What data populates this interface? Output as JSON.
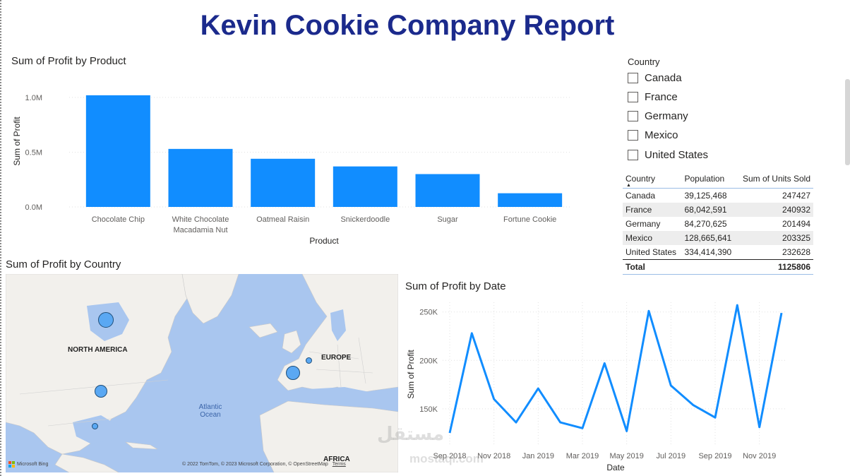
{
  "report_title": "Kevin Cookie Company Report",
  "bar_chart": {
    "title": "Sum of Profit by Product",
    "chart_data": {
      "type": "bar",
      "categories": [
        "Chocolate Chip",
        "White Chocolate Macadamia Nut",
        "Oatmeal Raisin",
        "Snickerdoodle",
        "Sugar",
        "Fortune Cookie"
      ],
      "category_lines": [
        [
          "Chocolate Chip"
        ],
        [
          "White Chocolate",
          "Macadamia Nut"
        ],
        [
          "Oatmeal Raisin"
        ],
        [
          "Snickerdoodle"
        ],
        [
          "Sugar"
        ],
        [
          "Fortune Cookie"
        ]
      ],
      "values": [
        1020000,
        530000,
        440000,
        370000,
        300000,
        125000
      ],
      "xlabel": "Product",
      "ylabel": "Sum of Profit",
      "ylim": [
        0,
        1000000
      ],
      "yticks": [
        0,
        500000,
        1000000
      ],
      "ytick_labels": [
        "0.0M",
        "0.5M",
        "1.0M"
      ],
      "color": "#118dff",
      "grid": true
    }
  },
  "slicer": {
    "label": "Country",
    "items": [
      "Canada",
      "France",
      "Germany",
      "Mexico",
      "United States"
    ]
  },
  "table": {
    "headers": [
      "Country",
      "Population",
      "Sum of Units Sold"
    ],
    "rows": [
      [
        "Canada",
        "39,125,468",
        "247427"
      ],
      [
        "France",
        "68,042,591",
        "240932"
      ],
      [
        "Germany",
        "84,270,625",
        "201494"
      ],
      [
        "Mexico",
        "128,665,641",
        "203325"
      ],
      [
        "United States",
        "334,414,390",
        "232628"
      ]
    ],
    "total_label": "Total",
    "total_value": "1125806"
  },
  "map": {
    "title": "Sum of Profit by Country",
    "labels": {
      "north_america": "NORTH AMERICA",
      "europe": "EUROPE",
      "africa": "AFRICA",
      "ocean_line1": "Atlantic",
      "ocean_line2": "Ocean"
    },
    "bing_logo": "Microsoft Bing",
    "copyright": "© 2022 TomTom, © 2023 Microsoft Corporation, © OpenStreetMap",
    "terms": "Terms",
    "bubble_color": "#5aa8f3"
  },
  "line_chart": {
    "title": "Sum of Profit by Date",
    "chart_data": {
      "type": "line",
      "x": [
        "2018-09",
        "2018-10",
        "2018-11",
        "2018-12",
        "2019-01",
        "2019-02",
        "2019-03",
        "2019-04",
        "2019-05",
        "2019-06",
        "2019-07",
        "2019-08",
        "2019-09",
        "2019-10",
        "2019-11",
        "2019-12"
      ],
      "values": [
        125000,
        228000,
        160000,
        136000,
        171000,
        136000,
        130000,
        197000,
        127000,
        251000,
        174000,
        154000,
        141000,
        257000,
        131000,
        249000
      ],
      "xtick_labels": [
        "Sep 2018",
        "Nov 2018",
        "Jan 2019",
        "Mar 2019",
        "May 2019",
        "Jul 2019",
        "Sep 2019",
        "Nov 2019"
      ],
      "xlabel": "Date",
      "ylabel": "Sum of Profit",
      "yticks": [
        150000,
        200000,
        250000
      ],
      "ytick_labels": [
        "150K",
        "200K",
        "250K"
      ],
      "ylim": [
        120000,
        260000
      ],
      "color": "#118dff",
      "grid": true
    }
  },
  "watermark": {
    "text": "mostaql.com",
    "arabic": "مستقل"
  }
}
